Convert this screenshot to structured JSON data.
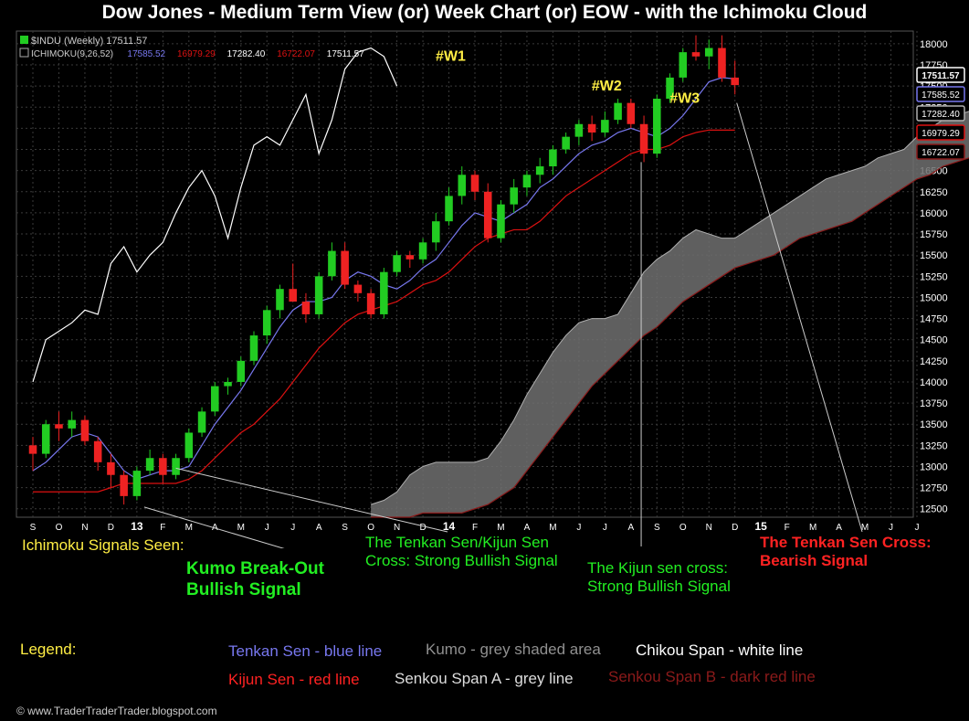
{
  "title": "Dow Jones - Medium Term View (or) Week Chart (or) EOW - with the Ichimoku Cloud",
  "chart_header": {
    "symbol_line": "$INDU (Weekly) 17511.57",
    "ichimoku_label": "ICHIMOKU(9,26,52)",
    "ichimoku_values": [
      "17585.52",
      "16979.29",
      "17282.40",
      "16722.07",
      "17511.57"
    ]
  },
  "colors": {
    "tenkan": "#7777ee",
    "kijun": "#dd1111",
    "chikou": "#ffffff",
    "kumo": "#707070",
    "span_a": "#b0b0b0",
    "span_b": "#8b1a1a",
    "bull_candle": "#22cc22",
    "bear_candle": "#ee2222",
    "green_text": "#22ee22",
    "red_text": "#ff2222",
    "yellow_text": "#ffee44"
  },
  "price_tags": [
    {
      "label": "17511.57",
      "value": 17511.57,
      "color": "#ffffff"
    },
    {
      "label": "17585.52",
      "value": 17585.52,
      "color": "#7777ee"
    },
    {
      "label": "17282.40",
      "value": 17282.4,
      "color": "#b0b0b0"
    },
    {
      "label": "16979.29",
      "value": 16979.29,
      "color": "#dd1111"
    },
    {
      "label": "16722.07",
      "value": 16722.07,
      "color": "#8b1a1a"
    }
  ],
  "wave_labels": [
    {
      "label": "#W1",
      "value": 17800,
      "week": 30
    },
    {
      "label": "#W2",
      "value": 17450,
      "week": 42
    },
    {
      "label": "#W3",
      "value": 17300,
      "week": 48
    }
  ],
  "annotations": {
    "signals_seen": "Ichimoku Signals Seen:",
    "kumo_breakout": [
      "Kumo Break-Out",
      "Bullish Signal"
    ],
    "tk_cross": [
      "The Tenkan Sen/Kijun Sen",
      "Cross: Strong Bullish Signal"
    ],
    "kijun_cross": [
      "The Kijun sen cross:",
      "Strong Bullish Signal"
    ],
    "tenkan_bearish": [
      "The Tenkan Sen Cross:",
      "Bearish Signal"
    ]
  },
  "legend": {
    "title": "Legend:",
    "tenkan": "Tenkan Sen - blue line",
    "kumo": "Kumo - grey shaded area",
    "chikou": "Chikou Span - white line",
    "kijun": "Kijun Sen - red line",
    "span_a": "Senkou Span A - grey line",
    "span_b": "Senkou Span B - dark red line"
  },
  "footer": "© www.TraderTraderTrader.blogspot.com",
  "chart_data": {
    "type": "line",
    "subtype": "candlestick-ichimoku",
    "x_ticks": [
      "S",
      "O",
      "N",
      "D",
      "13",
      "F",
      "M",
      "A",
      "M",
      "J",
      "J",
      "A",
      "S",
      "O",
      "N",
      "D",
      "14",
      "F",
      "M",
      "A",
      "M",
      "J",
      "J",
      "A",
      "S",
      "O",
      "N",
      "D",
      "15",
      "F",
      "M",
      "A",
      "M",
      "J",
      "J"
    ],
    "y_ticks": [
      12500,
      12750,
      13000,
      13250,
      13500,
      13750,
      14000,
      14250,
      14500,
      14750,
      15000,
      15250,
      15500,
      15750,
      16000,
      16250,
      16500,
      16750,
      17000,
      17250,
      17500,
      17750,
      18000
    ],
    "ylim": [
      12400,
      18150
    ],
    "grid": true,
    "candles": [
      [
        13250,
        13350,
        12950,
        13150
      ],
      [
        13150,
        13550,
        13100,
        13500
      ],
      [
        13500,
        13650,
        13300,
        13450
      ],
      [
        13450,
        13650,
        13350,
        13550
      ],
      [
        13550,
        13600,
        13250,
        13300
      ],
      [
        13300,
        13350,
        12950,
        13050
      ],
      [
        13050,
        13150,
        12750,
        12900
      ],
      [
        12900,
        12950,
        12550,
        12650
      ],
      [
        12650,
        13000,
        12600,
        12950
      ],
      [
        12950,
        13200,
        12900,
        13100
      ],
      [
        13100,
        13150,
        12800,
        12900
      ],
      [
        12900,
        13150,
        12850,
        13100
      ],
      [
        13100,
        13450,
        13050,
        13400
      ],
      [
        13400,
        13700,
        13350,
        13650
      ],
      [
        13650,
        14000,
        13600,
        13950
      ],
      [
        13950,
        14050,
        13850,
        14000
      ],
      [
        14000,
        14300,
        13950,
        14250
      ],
      [
        14250,
        14600,
        14200,
        14550
      ],
      [
        14550,
        14900,
        14450,
        14850
      ],
      [
        14850,
        15150,
        14750,
        15100
      ],
      [
        15100,
        15400,
        14950,
        14950
      ],
      [
        14950,
        15050,
        14700,
        14800
      ],
      [
        14800,
        15300,
        14750,
        15250
      ],
      [
        15250,
        15650,
        15200,
        15550
      ],
      [
        15550,
        15650,
        15100,
        15150
      ],
      [
        15150,
        15200,
        14950,
        15050
      ],
      [
        15050,
        15100,
        14750,
        14800
      ],
      [
        14800,
        15350,
        14750,
        15300
      ],
      [
        15300,
        15550,
        15250,
        15500
      ],
      [
        15500,
        15550,
        15350,
        15450
      ],
      [
        15450,
        15700,
        15400,
        15650
      ],
      [
        15650,
        16000,
        15550,
        15900
      ],
      [
        15900,
        16300,
        15850,
        16200
      ],
      [
        16200,
        16550,
        16100,
        16450
      ],
      [
        16450,
        16500,
        16150,
        16250
      ],
      [
        16250,
        16350,
        15650,
        15700
      ],
      [
        15700,
        16150,
        15650,
        16100
      ],
      [
        16100,
        16400,
        16000,
        16300
      ],
      [
        16300,
        16500,
        16200,
        16450
      ],
      [
        16450,
        16650,
        16350,
        16550
      ],
      [
        16550,
        16800,
        16450,
        16750
      ],
      [
        16750,
        16950,
        16700,
        16900
      ],
      [
        16900,
        17100,
        16800,
        17050
      ],
      [
        17050,
        17150,
        16850,
        16950
      ],
      [
        16950,
        17200,
        16900,
        17100
      ],
      [
        17100,
        17350,
        17050,
        17300
      ],
      [
        17300,
        17350,
        17000,
        17050
      ],
      [
        17050,
        17150,
        16600,
        16700
      ],
      [
        16700,
        17400,
        16650,
        17350
      ],
      [
        17350,
        17650,
        17300,
        17600
      ],
      [
        17600,
        17950,
        17550,
        17900
      ],
      [
        17900,
        18100,
        17800,
        17850
      ],
      [
        17850,
        18050,
        17700,
        17950
      ],
      [
        17950,
        18100,
        17550,
        17600
      ],
      [
        17600,
        17800,
        17400,
        17511
      ]
    ],
    "tenkan": [
      12950,
      13050,
      13200,
      13350,
      13400,
      13350,
      13150,
      12950,
      12850,
      12900,
      12950,
      12950,
      13000,
      13250,
      13500,
      13700,
      13900,
      14150,
      14400,
      14650,
      14850,
      14950,
      14950,
      15000,
      15200,
      15300,
      15250,
      15150,
      15100,
      15200,
      15350,
      15450,
      15650,
      15850,
      16000,
      15950,
      15900,
      16000,
      16100,
      16300,
      16400,
      16550,
      16700,
      16800,
      16850,
      16950,
      17000,
      16950,
      16900,
      17000,
      17150,
      17350,
      17550,
      17600,
      17585
    ],
    "kijun": [
      12700,
      12700,
      12700,
      12700,
      12700,
      12700,
      12750,
      12800,
      12800,
      12800,
      12800,
      12800,
      12850,
      12950,
      13100,
      13250,
      13400,
      13500,
      13650,
      13800,
      14000,
      14200,
      14400,
      14550,
      14700,
      14800,
      14850,
      14900,
      14950,
      15050,
      15150,
      15200,
      15300,
      15450,
      15600,
      15700,
      15750,
      15800,
      15800,
      15900,
      16050,
      16200,
      16300,
      16400,
      16500,
      16600,
      16700,
      16750,
      16750,
      16800,
      16900,
      16950,
      16979,
      16979,
      16979
    ],
    "chikou": [
      14000,
      14500,
      14600,
      14700,
      14850,
      14800,
      15400,
      15600,
      15300,
      15500,
      15650,
      16000,
      16300,
      16500,
      16200,
      15700,
      16300,
      16800,
      16900,
      16800,
      17100,
      17400,
      16700,
      17100,
      17700,
      17900,
      17950,
      17850,
      17500
    ],
    "span_a": [
      12550,
      12600,
      12700,
      12900,
      13000,
      13050,
      13050,
      13050,
      13050,
      13100,
      13300,
      13550,
      13850,
      14100,
      14350,
      14550,
      14700,
      14750,
      14750,
      14800,
      15050,
      15300,
      15450,
      15550,
      15700,
      15800,
      15750,
      15700,
      15700,
      15800,
      15900,
      16000,
      16100,
      16200,
      16300,
      16400,
      16450,
      16500,
      16550,
      16650,
      16700,
      16750,
      16900,
      17000,
      17100,
      17150,
      17200,
      17250,
      17282
    ],
    "span_b": [
      12400,
      12400,
      12400,
      12400,
      12450,
      12450,
      12450,
      12450,
      12500,
      12550,
      12650,
      12750,
      12950,
      13150,
      13350,
      13550,
      13750,
      13950,
      14100,
      14250,
      14400,
      14550,
      14650,
      14800,
      14950,
      15050,
      15150,
      15250,
      15350,
      15400,
      15450,
      15500,
      15600,
      15700,
      15750,
      15800,
      15850,
      15900,
      16000,
      16100,
      16200,
      16300,
      16400,
      16450,
      16550,
      16600,
      16650,
      16700,
      16722
    ]
  }
}
